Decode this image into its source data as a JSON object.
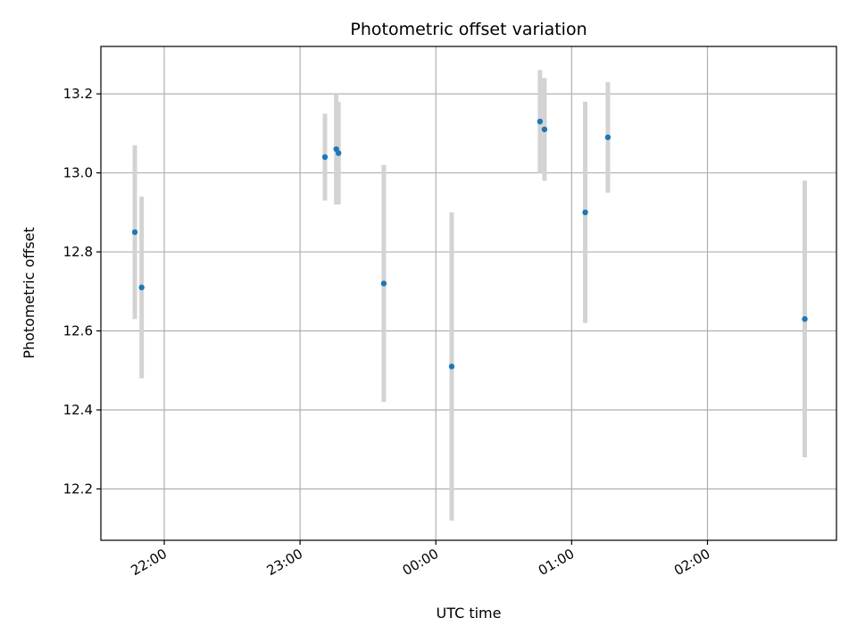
{
  "chart_data": {
    "type": "scatter",
    "title": "Photometric offset variation",
    "xlabel": "UTC time",
    "ylabel": "Photometric offset",
    "x_axis": "time",
    "xlim": [
      "21:32",
      "02:57"
    ],
    "ylim": [
      12.07,
      13.32
    ],
    "x_ticks": [
      "22:00",
      "23:00",
      "00:00",
      "01:00",
      "02:00"
    ],
    "y_ticks": [
      12.2,
      12.4,
      12.6,
      12.8,
      13.0,
      13.2
    ],
    "grid": true,
    "legend": "none",
    "colors": {
      "point": "#1f77b4",
      "errorbar": "#d3d3d3",
      "grid": "#b0b0b0"
    },
    "series": [
      {
        "points": [
          {
            "x": "21:47",
            "y": 12.85,
            "yerr": 0.22
          },
          {
            "x": "21:50",
            "y": 12.71,
            "yerr": 0.23
          },
          {
            "x": "23:11",
            "y": 13.04,
            "yerr": 0.11
          },
          {
            "x": "23:16",
            "y": 13.06,
            "yerr": 0.14
          },
          {
            "x": "23:17",
            "y": 13.05,
            "yerr": 0.13
          },
          {
            "x": "23:37",
            "y": 12.72,
            "yerr": 0.3
          },
          {
            "x": "00:07",
            "y": 12.51,
            "yerr": 0.39
          },
          {
            "x": "00:46",
            "y": 13.13,
            "yerr": 0.13
          },
          {
            "x": "00:48",
            "y": 13.11,
            "yerr": 0.13
          },
          {
            "x": "01:06",
            "y": 12.9,
            "yerr": 0.28
          },
          {
            "x": "01:16",
            "y": 13.09,
            "yerr": 0.14
          },
          {
            "x": "02:43",
            "y": 12.63,
            "yerr": 0.35
          }
        ]
      }
    ]
  }
}
